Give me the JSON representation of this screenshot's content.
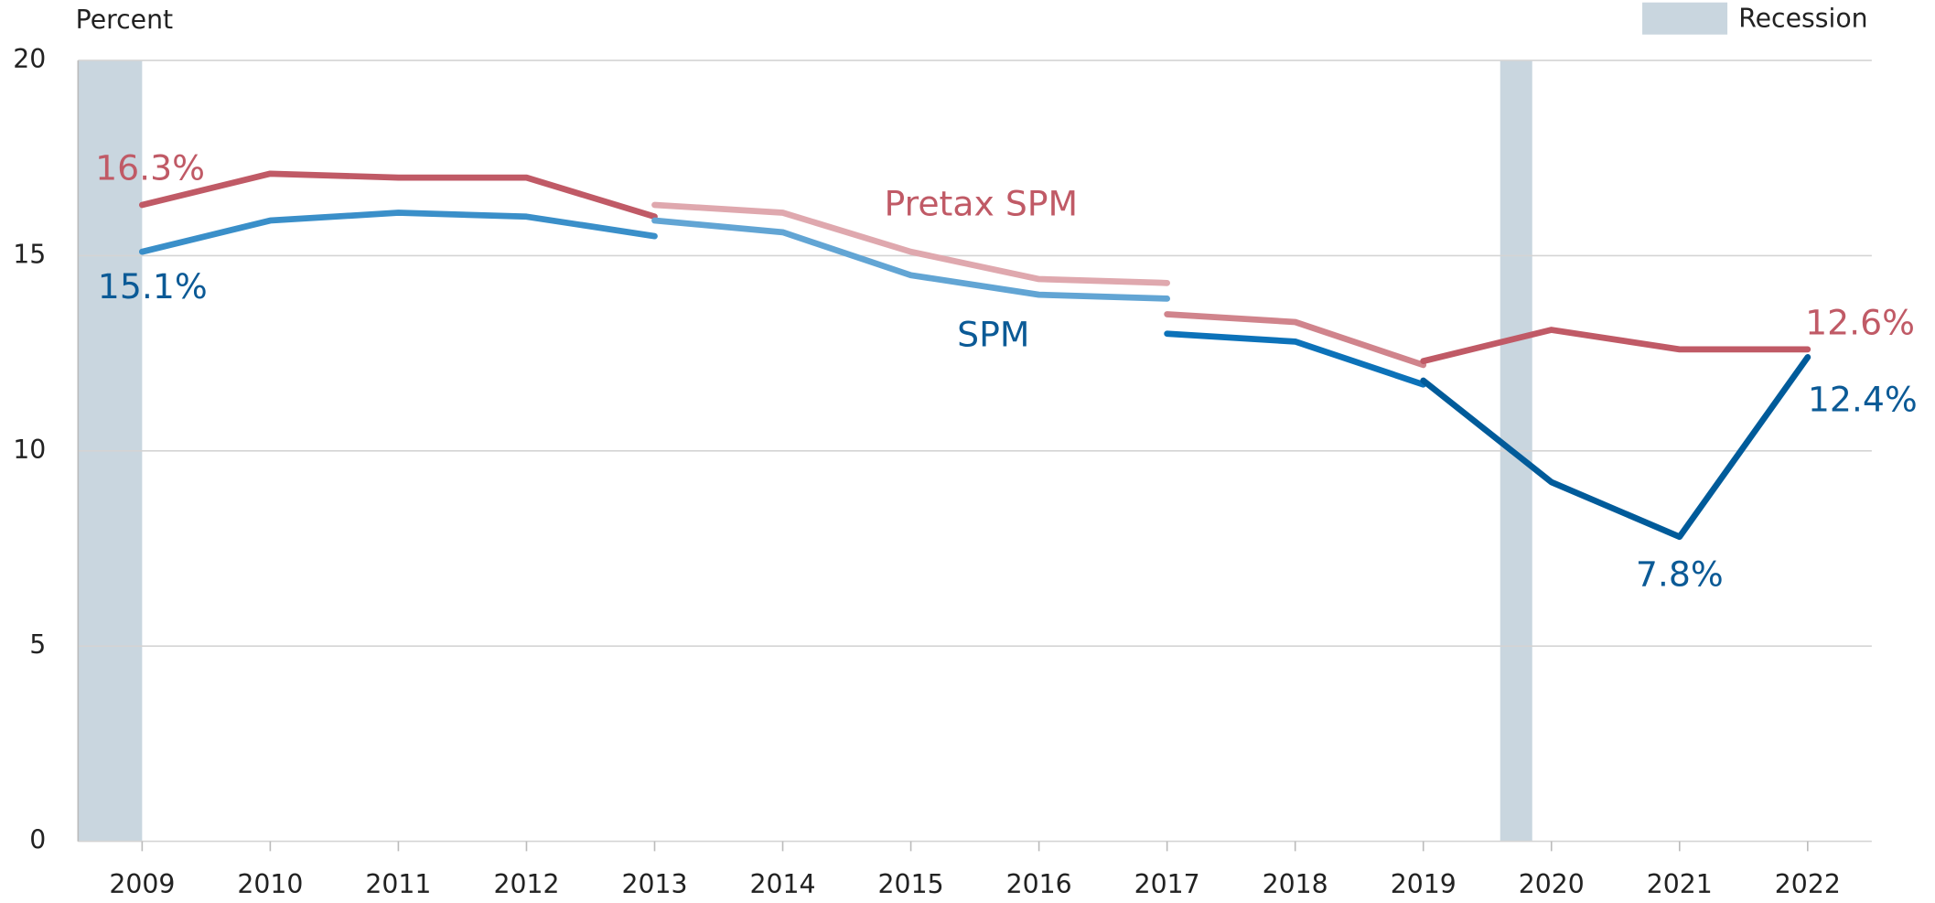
{
  "chart_data": {
    "type": "line",
    "y_label": "Percent",
    "xlim": [
      2008.5,
      2022.5
    ],
    "xticks": [
      2009,
      2010,
      2011,
      2012,
      2013,
      2014,
      2015,
      2016,
      2017,
      2018,
      2019,
      2020,
      2021,
      2022
    ],
    "ylim": [
      0,
      20
    ],
    "yticks": [
      0,
      5,
      10,
      15,
      20
    ],
    "grid": true,
    "recession": {
      "name": "Recession",
      "color": "#c9d6df",
      "spans": [
        [
          2008.5,
          2009
        ],
        [
          2019.6,
          2019.85
        ]
      ]
    },
    "series": [
      {
        "name": "Pretax SPM",
        "color": "#c05a66",
        "segments": [
          {
            "color": "#c05a66",
            "x": [
              2009,
              2010,
              2011,
              2012,
              2013
            ],
            "values": [
              16.3,
              17.1,
              17.0,
              17.0,
              16.0
            ],
            "value_labels": [
              "16.3%",
              null,
              null,
              null,
              null
            ]
          },
          {
            "color": "#dfa8ae",
            "x": [
              2013,
              2014,
              2015,
              2016,
              2017
            ],
            "values": [
              16.3,
              16.1,
              15.1,
              14.4,
              14.3
            ]
          },
          {
            "color": "#d0848c",
            "x": [
              2017,
              2018,
              2019
            ],
            "values": [
              13.5,
              13.3,
              12.2
            ]
          },
          {
            "color": "#c05a66",
            "x": [
              2019,
              2020,
              2021,
              2022
            ],
            "values": [
              12.3,
              13.1,
              12.6,
              12.6
            ],
            "value_labels": [
              null,
              null,
              null,
              "12.6%"
            ]
          }
        ]
      },
      {
        "name": "SPM",
        "color": "#0b5a96",
        "segments": [
          {
            "color": "#3a8fc9",
            "x": [
              2009,
              2010,
              2011,
              2012,
              2013
            ],
            "values": [
              15.1,
              15.9,
              16.1,
              16.0,
              15.5
            ],
            "value_labels": [
              "15.1%",
              null,
              null,
              null,
              null
            ]
          },
          {
            "color": "#62a5d4",
            "x": [
              2013,
              2014,
              2015,
              2016,
              2017
            ],
            "values": [
              15.9,
              15.6,
              14.5,
              14.0,
              13.9
            ]
          },
          {
            "color": "#0c72b9",
            "x": [
              2017,
              2018,
              2019
            ],
            "values": [
              13.0,
              12.8,
              11.7
            ]
          },
          {
            "color": "#005b9a",
            "x": [
              2019,
              2020,
              2021,
              2022
            ],
            "values": [
              11.8,
              9.2,
              7.8,
              12.4
            ],
            "value_labels": [
              null,
              null,
              "7.8%",
              "12.4%"
            ]
          }
        ]
      }
    ]
  }
}
